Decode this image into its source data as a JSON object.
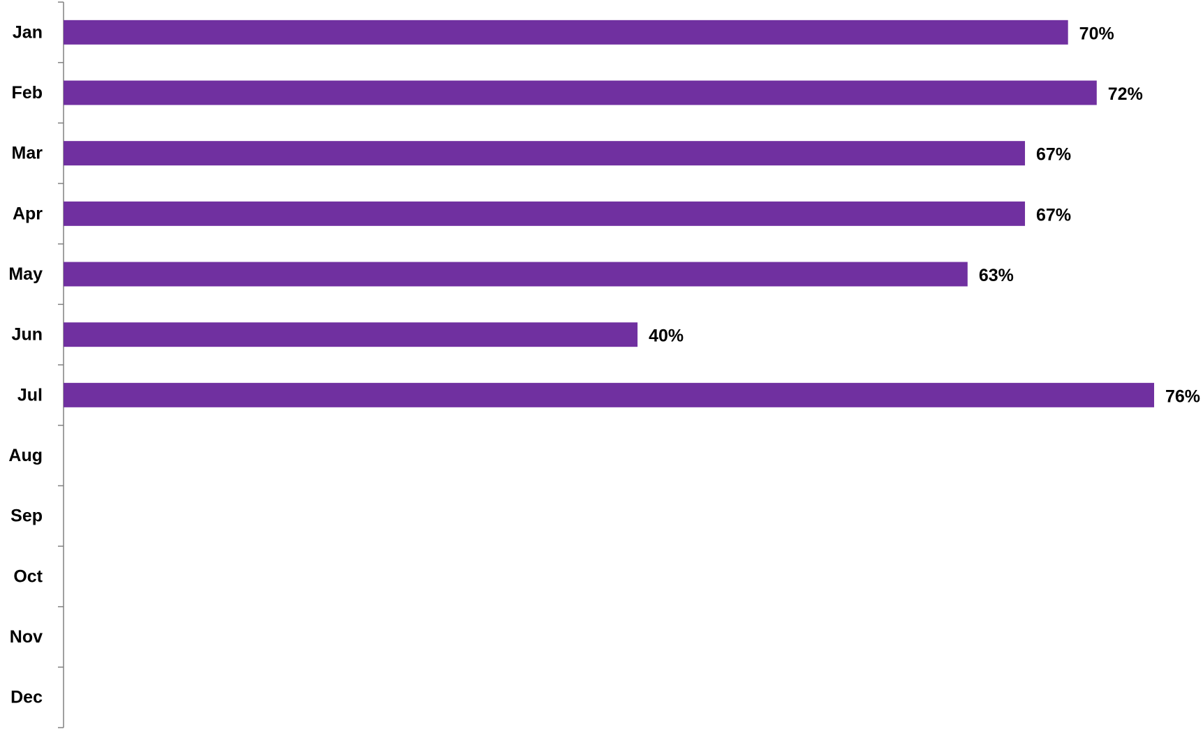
{
  "chart_data": {
    "type": "bar",
    "orientation": "horizontal",
    "categories": [
      "Jan",
      "Feb",
      "Mar",
      "Apr",
      "May",
      "Jun",
      "Jul",
      "Aug",
      "Sep",
      "Oct",
      "Nov",
      "Dec"
    ],
    "values": [
      70,
      72,
      67,
      67,
      63,
      40,
      76,
      null,
      null,
      null,
      null,
      null
    ],
    "data_labels": [
      "70%",
      "72%",
      "67%",
      "67%",
      "63%",
      "40%",
      "76%",
      "",
      "",
      "",
      "",
      ""
    ],
    "unit": "%",
    "title": "",
    "xlabel": "",
    "ylabel": "",
    "xlim": [
      0,
      76
    ],
    "grid": false,
    "legend": "none",
    "bar_color": "#7030A0",
    "axis_color": "#808080"
  }
}
